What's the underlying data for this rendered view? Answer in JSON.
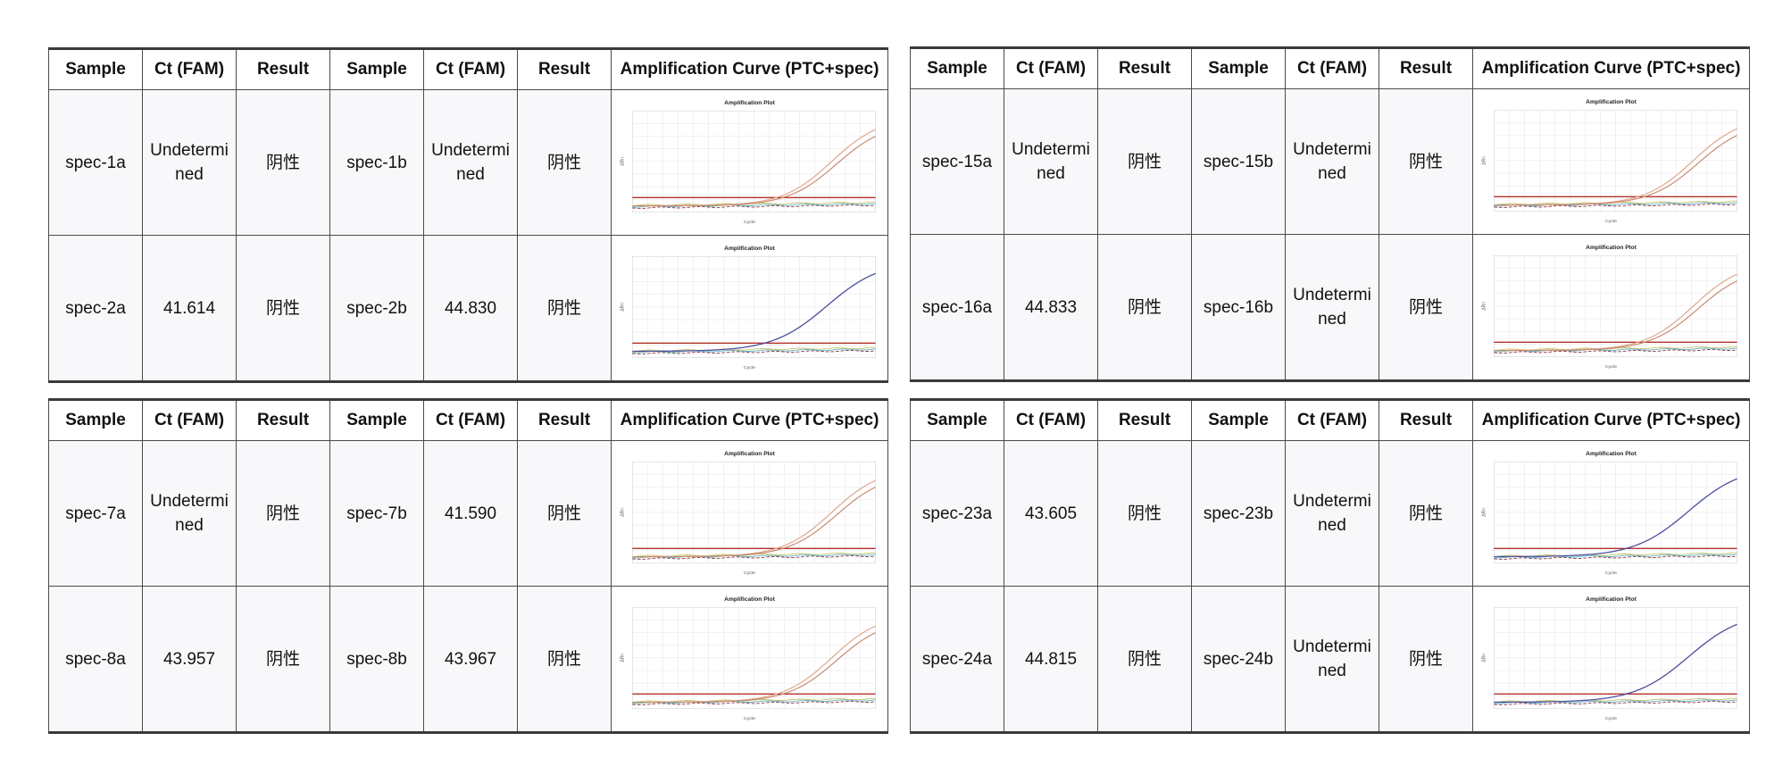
{
  "headers": [
    "Sample",
    "Ct (FAM)",
    "Result",
    "Sample",
    "Ct (FAM)",
    "Result",
    "Amplification Curve (PTC+spec)"
  ],
  "plot": {
    "title": "Amplification Plot",
    "xlabel": "Cycle",
    "ylabel": "ΔRn"
  },
  "colors": {
    "ptc_primary": "#e0a68c",
    "ptc_secondary": "#c98a72",
    "ptc_blue": "#4c4f9e",
    "threshold": "#b2302a",
    "grid": "#e4e4ea",
    "baseline_1": "#8c3a45",
    "baseline_2": "#5fb8c9",
    "baseline_3": "#c9c36a"
  },
  "panels": [
    {
      "rows": [
        {
          "sample_a": "spec-1a",
          "ct_a": "Undetermined",
          "result_a": "阴性",
          "sample_b": "spec-1b",
          "ct_b": "Undetermined",
          "result_b": "阴性",
          "curve": "double-orange"
        },
        {
          "sample_a": "spec-2a",
          "ct_a": "41.614",
          "result_a": "阴性",
          "sample_b": "spec-2b",
          "ct_b": "44.830",
          "result_b": "阴性",
          "curve": "single-blue"
        }
      ]
    },
    {
      "rows": [
        {
          "sample_a": "spec-15a",
          "ct_a": "Undetermined",
          "result_a": "阴性",
          "sample_b": "spec-15b",
          "ct_b": "Undetermined",
          "result_b": "阴性",
          "curve": "double-orange"
        },
        {
          "sample_a": "spec-16a",
          "ct_a": "44.833",
          "result_a": "阴性",
          "sample_b": "spec-16b",
          "ct_b": "Undetermined",
          "result_b": "阴性",
          "curve": "double-orange"
        }
      ]
    },
    {
      "rows": [
        {
          "sample_a": "spec-7a",
          "ct_a": "Undetermined",
          "result_a": "阴性",
          "sample_b": "spec-7b",
          "ct_b": "41.590",
          "result_b": "阴性",
          "curve": "double-orange"
        },
        {
          "sample_a": "spec-8a",
          "ct_a": "43.957",
          "result_a": "阴性",
          "sample_b": "spec-8b",
          "ct_b": "43.967",
          "result_b": "阴性",
          "curve": "double-orange"
        }
      ]
    },
    {
      "rows": [
        {
          "sample_a": "spec-23a",
          "ct_a": "43.605",
          "result_a": "阴性",
          "sample_b": "spec-23b",
          "ct_b": "Undetermined",
          "result_b": "阴性",
          "curve": "single-blue"
        },
        {
          "sample_a": "spec-24a",
          "ct_a": "44.815",
          "result_a": "阴性",
          "sample_b": "spec-24b",
          "ct_b": "Undetermined",
          "result_b": "阴性",
          "curve": "single-blue"
        }
      ]
    }
  ]
}
